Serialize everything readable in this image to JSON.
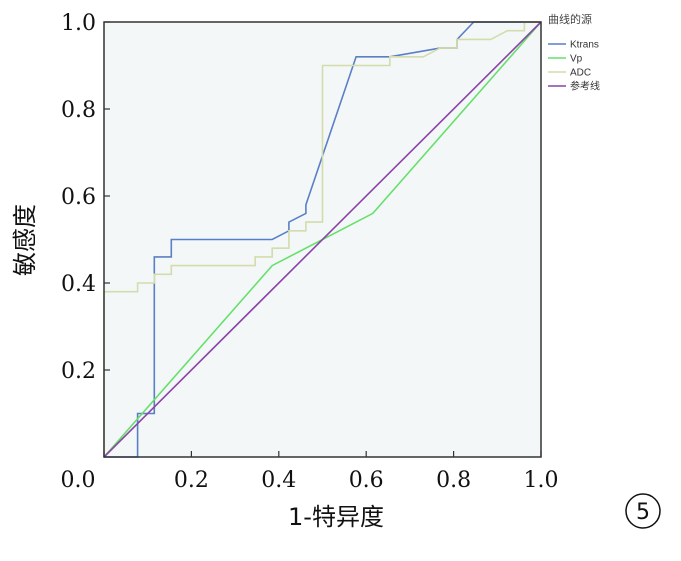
{
  "panel_label": "5",
  "chart_data": {
    "type": "line",
    "title": "",
    "xlabel": "1-特异度",
    "ylabel": "敏感度",
    "xlim": [
      0,
      1
    ],
    "ylim": [
      0,
      1
    ],
    "x_ticks": [
      "0.0",
      "0.2",
      "0.4",
      "0.6",
      "0.8",
      "1.0"
    ],
    "y_ticks": [
      "0.2",
      "0.4",
      "0.6",
      "0.8",
      "1.0"
    ],
    "grid": false,
    "legend_title": "曲线的源",
    "legend_position": "right",
    "series": [
      {
        "name": "Ktrans",
        "color": "#5b7fc6",
        "step": true,
        "points": [
          [
            0,
            0
          ],
          [
            0.077,
            0
          ],
          [
            0.077,
            0.1
          ],
          [
            0.115,
            0.1
          ],
          [
            0.115,
            0.46
          ],
          [
            0.154,
            0.46
          ],
          [
            0.154,
            0.5
          ],
          [
            0.385,
            0.5
          ],
          [
            0.423,
            0.52
          ],
          [
            0.423,
            0.54
          ],
          [
            0.462,
            0.56
          ],
          [
            0.462,
            0.58
          ],
          [
            0.577,
            0.92
          ],
          [
            0.654,
            0.92
          ],
          [
            0.769,
            0.94
          ],
          [
            0.808,
            0.94
          ],
          [
            0.808,
            0.96
          ],
          [
            0.846,
            1.0
          ],
          [
            1.0,
            1.0
          ]
        ]
      },
      {
        "name": "Vp",
        "color": "#66e06a",
        "step": false,
        "points": [
          [
            0,
            0
          ],
          [
            0.385,
            0.44
          ],
          [
            0.615,
            0.56
          ],
          [
            1.0,
            1.0
          ]
        ]
      },
      {
        "name": "ADC",
        "color": "#d3dcaa",
        "step": true,
        "points": [
          [
            0,
            0
          ],
          [
            0,
            0.38
          ],
          [
            0.077,
            0.38
          ],
          [
            0.077,
            0.4
          ],
          [
            0.115,
            0.4
          ],
          [
            0.115,
            0.42
          ],
          [
            0.154,
            0.42
          ],
          [
            0.154,
            0.44
          ],
          [
            0.346,
            0.44
          ],
          [
            0.346,
            0.46
          ],
          [
            0.385,
            0.46
          ],
          [
            0.385,
            0.48
          ],
          [
            0.423,
            0.48
          ],
          [
            0.423,
            0.52
          ],
          [
            0.462,
            0.52
          ],
          [
            0.462,
            0.54
          ],
          [
            0.5,
            0.54
          ],
          [
            0.5,
            0.9
          ],
          [
            0.654,
            0.9
          ],
          [
            0.654,
            0.92
          ],
          [
            0.731,
            0.92
          ],
          [
            0.769,
            0.94
          ],
          [
            0.808,
            0.94
          ],
          [
            0.808,
            0.96
          ],
          [
            0.885,
            0.96
          ],
          [
            0.923,
            0.98
          ],
          [
            0.962,
            0.98
          ],
          [
            0.962,
            1.0
          ],
          [
            1.0,
            1.0
          ]
        ]
      },
      {
        "name": "参考线",
        "color": "#8a44a6",
        "step": false,
        "points": [
          [
            0,
            0
          ],
          [
            1,
            1
          ]
        ]
      }
    ]
  }
}
